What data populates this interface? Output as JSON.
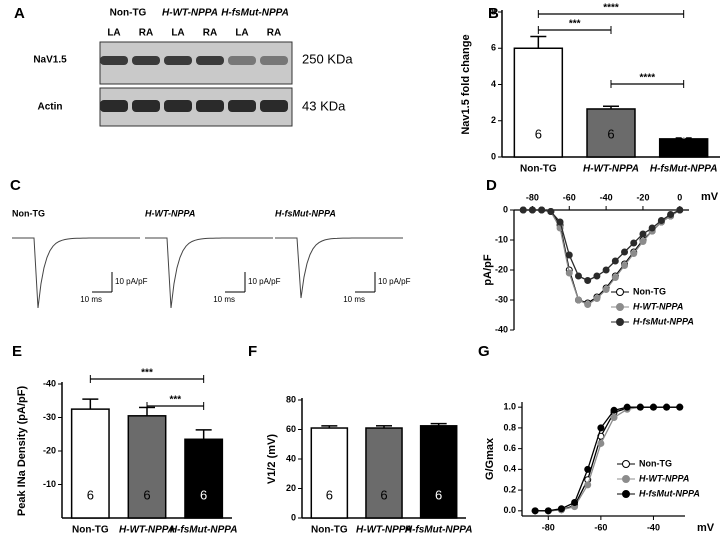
{
  "blot": {
    "label": "A",
    "groups": [
      "Non-TG",
      "H-WT-NPPA",
      "H-fsMut-NPPA"
    ],
    "lanes": [
      "LA",
      "RA",
      "LA",
      "RA",
      "LA",
      "RA"
    ],
    "rows": [
      {
        "name": "NaV1.5",
        "size": "250 KDa"
      },
      {
        "name": "Actin",
        "size": "43 KDa"
      }
    ]
  },
  "traces": {
    "label": "C",
    "names": [
      "Non-TG",
      "H-WT-NPPA",
      "H-fsMut-NPPA"
    ],
    "scale_y": "10 pA/pF",
    "scale_x": "10 ms"
  },
  "chart_data": [
    {
      "type": "bar",
      "label": "B",
      "ylabel": "Nav1.5 fold change",
      "categories": [
        "Non-TG",
        "H-WT-NPPA",
        "H-fsMut-NPPA"
      ],
      "values": [
        6,
        2.65,
        1.0
      ],
      "errors": [
        0.65,
        0.15,
        0.05
      ],
      "colors": [
        "#ffffff",
        "#6b6b6b",
        "#000000"
      ],
      "n_labels": [
        "6",
        "6",
        "6"
      ],
      "ylim": [
        0,
        8
      ],
      "yticks": [
        0,
        2,
        4,
        6,
        8
      ],
      "significance": [
        {
          "from": 0,
          "to": 2,
          "label": "****"
        },
        {
          "from": 0,
          "to": 1,
          "label": "***"
        },
        {
          "from": 1,
          "to": 2,
          "label": "****"
        }
      ]
    },
    {
      "type": "line",
      "label": "D",
      "ylabel": "pA/pF",
      "xlabel": "mV",
      "x_axis": "top",
      "x": [
        -85,
        -80,
        -75,
        -70,
        -65,
        -60,
        -55,
        -50,
        -45,
        -40,
        -35,
        -30,
        -25,
        -20,
        -15,
        -10,
        -5,
        0
      ],
      "series": [
        {
          "name": "Non-TG",
          "color": "#ffffff",
          "values": [
            0,
            0,
            0,
            -0.5,
            -5,
            -20,
            -30,
            -31,
            -29,
            -26,
            -22,
            -18,
            -14,
            -10,
            -7,
            -4,
            -2,
            0
          ]
        },
        {
          "name": "H-WT-NPPA",
          "color": "#8c8c8c",
          "values": [
            0,
            0,
            0,
            -0.5,
            -6,
            -21,
            -30,
            -31.5,
            -29.5,
            -26.5,
            -22.5,
            -18.5,
            -14.5,
            -10.5,
            -7,
            -4,
            -2,
            0
          ]
        },
        {
          "name": "H-fsMut-NPPA",
          "color": "#2b2b2b",
          "values": [
            0,
            0,
            0,
            -0.5,
            -4,
            -15,
            -22,
            -23.5,
            -22,
            -20,
            -17,
            -14,
            -11,
            -8,
            -6,
            -3.5,
            -1.5,
            0
          ]
        }
      ],
      "xlim": [
        -90,
        5
      ],
      "ylim": [
        -40,
        0
      ],
      "xticks": [
        -80,
        -60,
        -40,
        -20,
        0
      ],
      "yticks": [
        0,
        -10,
        -20,
        -30,
        -40
      ],
      "legend": "lower right"
    },
    {
      "type": "bar",
      "label": "E",
      "ylabel": "Peak INa Density (pA/pF)",
      "categories": [
        "Non-TG",
        "H-WT-NPPA",
        "H-fsMut-NPPA"
      ],
      "values": [
        -32.5,
        -30.5,
        -23.5
      ],
      "errors": [
        3,
        2.5,
        2.8
      ],
      "colors": [
        "#ffffff",
        "#6b6b6b",
        "#000000"
      ],
      "n_labels": [
        "6",
        "6",
        "6"
      ],
      "ylim": [
        0,
        -40
      ],
      "yticks": [
        -10,
        -20,
        -30,
        -40
      ],
      "significance": [
        {
          "from": 0,
          "to": 2,
          "label": "***"
        },
        {
          "from": 1,
          "to": 2,
          "label": "***"
        }
      ]
    },
    {
      "type": "bar",
      "label": "F",
      "ylabel": "V1/2 (mV)",
      "categories": [
        "Non-TG",
        "H-WT-NPPA",
        "H-fsMut-NPPA"
      ],
      "values": [
        61,
        61,
        62.5
      ],
      "errors": [
        1.5,
        1.5,
        1.5
      ],
      "colors": [
        "#ffffff",
        "#6b6b6b",
        "#000000"
      ],
      "n_labels": [
        "6",
        "6",
        "6"
      ],
      "ylim": [
        0,
        80
      ],
      "yticks": [
        0,
        20,
        40,
        60,
        80
      ]
    },
    {
      "type": "line",
      "label": "G",
      "ylabel": "G/Gmax",
      "xlabel": "mV",
      "x_axis": "bottom",
      "x": [
        -85,
        -80,
        -75,
        -70,
        -65,
        -60,
        -55,
        -50,
        -45,
        -40,
        -35,
        -30
      ],
      "series": [
        {
          "name": "Non-TG",
          "color": "#ffffff",
          "values": [
            0,
            0,
            0.01,
            0.05,
            0.3,
            0.72,
            0.95,
            0.99,
            1,
            1,
            1,
            1
          ]
        },
        {
          "name": "H-WT-NPPA",
          "color": "#8c8c8c",
          "values": [
            0,
            0,
            0.01,
            0.04,
            0.25,
            0.65,
            0.9,
            0.98,
            1,
            1,
            1,
            1
          ]
        },
        {
          "name": "H-fsMut-NPPA",
          "color": "#000000",
          "values": [
            0,
            0,
            0.02,
            0.08,
            0.4,
            0.8,
            0.97,
            1,
            1,
            1,
            1,
            1
          ]
        }
      ],
      "xlim": [
        -90,
        -28
      ],
      "ylim": [
        -0.05,
        1.05
      ],
      "xticks": [
        -80,
        -60,
        -40
      ],
      "yticks": [
        {
          "value": 0,
          "label": "0.0"
        },
        {
          "value": 0.2,
          "label": "0.2"
        },
        {
          "value": 0.4,
          "label": "0.4"
        },
        {
          "value": 0.6,
          "label": "0.6"
        },
        {
          "value": 0.8,
          "label": "0.8"
        },
        {
          "value": 1,
          "label": "1.0"
        }
      ],
      "legend": "right"
    }
  ]
}
